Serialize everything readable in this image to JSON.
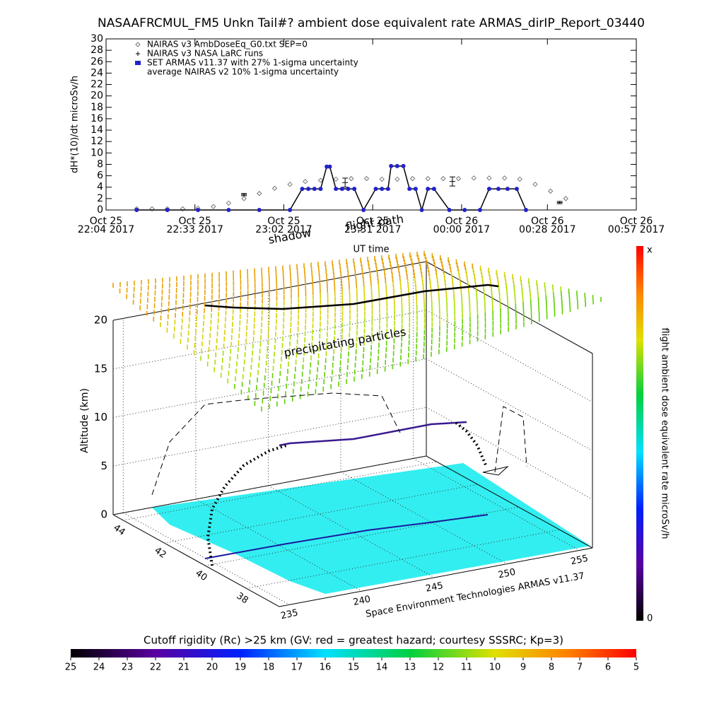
{
  "chart_data": [
    {
      "type": "line",
      "title": "NASAAFRCMUL_FM5 Unkn Tail#? ambient dose equivalent rate ARMAS_dirIP_Report_03440",
      "ylabel": "dH*(10)/dt microSv/h",
      "xlabel": "UT time",
      "xlim": [
        "2017-10-25 22:04",
        "2017-10-26 00:57"
      ],
      "xticks": [
        {
          "value": "2017-10-25 22:04",
          "label": "Oct 25\n22:04 2017"
        },
        {
          "value": "2017-10-25 22:33",
          "label": "Oct 25\n22:33 2017"
        },
        {
          "value": "2017-10-25 23:02",
          "label": "Oct 25\n23:02 2017"
        },
        {
          "value": "2017-10-25 23:31",
          "label": "Oct 25\n23:31 2017"
        },
        {
          "value": "2017-10-26 00:00",
          "label": "Oct 26\n00:00 2017"
        },
        {
          "value": "2017-10-26 00:28",
          "label": "Oct 26\n00:28 2017"
        },
        {
          "value": "2017-10-26 00:57",
          "label": "Oct 26\n00:57 2017"
        }
      ],
      "ylim": [
        0,
        30
      ],
      "yticks": [
        0,
        2,
        4,
        6,
        8,
        10,
        12,
        14,
        16,
        18,
        20,
        22,
        24,
        26,
        28,
        30
      ],
      "series": [
        {
          "name": "NAIRAS v3 AmbDoseEq_G0.txt SEP=0",
          "marker": "diamond",
          "color": "#777777",
          "x": [
            "2017-10-25 22:14",
            "2017-10-25 22:19",
            "2017-10-25 22:24",
            "2017-10-25 22:29",
            "2017-10-25 22:34",
            "2017-10-25 22:39",
            "2017-10-25 22:44",
            "2017-10-25 22:49",
            "2017-10-25 22:54",
            "2017-10-25 22:59",
            "2017-10-25 23:04",
            "2017-10-25 23:09",
            "2017-10-25 23:14",
            "2017-10-25 23:19",
            "2017-10-25 23:24",
            "2017-10-25 23:29",
            "2017-10-25 23:34",
            "2017-10-25 23:39",
            "2017-10-25 23:44",
            "2017-10-25 23:49",
            "2017-10-25 23:54",
            "2017-10-25 23:59",
            "2017-10-26 00:04",
            "2017-10-26 00:09",
            "2017-10-26 00:14",
            "2017-10-26 00:19",
            "2017-10-26 00:24",
            "2017-10-26 00:29",
            "2017-10-26 00:34"
          ],
          "values": [
            0.2,
            0.2,
            0.2,
            0.2,
            0.3,
            0.6,
            1.2,
            2,
            2.9,
            3.8,
            4.5,
            5,
            5.2,
            5.4,
            5.5,
            5.5,
            5.4,
            5.4,
            5.5,
            5.5,
            5.5,
            5.5,
            5.6,
            5.6,
            5.6,
            5.4,
            4.5,
            3.3,
            2
          ]
        },
        {
          "name": "NAIRAS v3 NASA LaRC runs",
          "marker": "errorbar",
          "color": "#000000",
          "x": [
            "2017-10-25 22:49",
            "2017-10-25 23:22",
            "2017-10-25 23:57",
            "2017-10-26 00:32"
          ],
          "values": [
            2.7,
            4.8,
            5,
            1.3
          ],
          "errors": [
            0.2,
            0.8,
            0.8,
            0.2
          ]
        },
        {
          "name": "SET ARMAS v11.37 with 27% 1-sigma uncertainty",
          "marker": "dot",
          "color": "#2222cc",
          "x": [
            "2017-10-25 22:14",
            "2017-10-25 22:24",
            "2017-10-25 22:34",
            "2017-10-25 22:44",
            "2017-10-25 22:54",
            "2017-10-25 23:04",
            "2017-10-25 23:08",
            "2017-10-25 23:10",
            "2017-10-25 23:12",
            "2017-10-25 23:14",
            "2017-10-25 23:16",
            "2017-10-25 23:17",
            "2017-10-25 23:19",
            "2017-10-25 23:21",
            "2017-10-25 23:23",
            "2017-10-25 23:25",
            "2017-10-25 23:28",
            "2017-10-25 23:32",
            "2017-10-25 23:34",
            "2017-10-25 23:36",
            "2017-10-25 23:37",
            "2017-10-25 23:39",
            "2017-10-25 23:41",
            "2017-10-25 23:43",
            "2017-10-25 23:45",
            "2017-10-25 23:47",
            "2017-10-25 23:49",
            "2017-10-25 23:51",
            "2017-10-25 23:56",
            "2017-10-26 00:01",
            "2017-10-26 00:06",
            "2017-10-26 00:09",
            "2017-10-26 00:12",
            "2017-10-26 00:15",
            "2017-10-26 00:18",
            "2017-10-26 00:21"
          ],
          "values": [
            0,
            0,
            0,
            0,
            0,
            0,
            3.7,
            3.7,
            3.7,
            3.7,
            7.6,
            7.6,
            3.7,
            3.7,
            3.7,
            3.7,
            0,
            3.7,
            3.7,
            3.7,
            7.7,
            7.7,
            7.7,
            3.7,
            3.7,
            0,
            3.7,
            3.7,
            0,
            0,
            0,
            3.7,
            3.7,
            3.7,
            3.7,
            0
          ]
        },
        {
          "name": "average NAIRAS v2 10% 1-sigma uncertainty",
          "marker": "none"
        }
      ]
    },
    {
      "type": "surface3d",
      "zlabel": "Altitude (km)",
      "zlim": [
        0,
        20
      ],
      "zticks": [
        0,
        5,
        10,
        15,
        20
      ],
      "xlim": [
        234.3,
        255.9
      ],
      "xticks": [
        235,
        240,
        245,
        250,
        255
      ],
      "ylim": [
        44.5,
        36.4
      ],
      "yticks": [
        44,
        42,
        40,
        38
      ],
      "annotations": [
        "shadow",
        "flight path",
        "precipitating particles"
      ],
      "credit": "Space Environment Technologies ARMAS v11.37"
    },
    {
      "type": "colorbar",
      "label": "flight ambient dose equivalent rate microSv/h",
      "max_label": "x",
      "min": 0
    },
    {
      "type": "colorbar",
      "title": "Cutoff rigidity (Rc) >25 km (GV: red = greatest hazard; courtesy SSSRC; Kp=3)",
      "lim": [
        25,
        5
      ],
      "ticks": [
        25,
        24,
        23,
        22,
        21,
        20,
        19,
        18,
        17,
        16,
        15,
        14,
        13,
        12,
        11,
        10,
        9,
        8,
        7,
        6,
        5
      ]
    }
  ]
}
